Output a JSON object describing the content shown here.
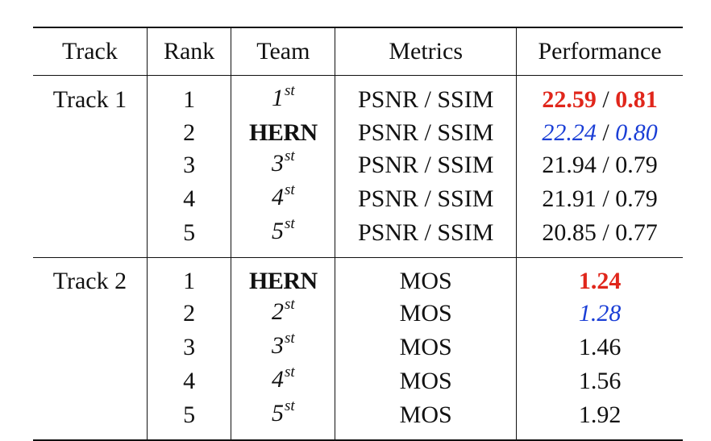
{
  "colors": {
    "best": "#e0261b",
    "second": "#1a3ed6",
    "text": "#111111"
  },
  "headers": {
    "track": "Track",
    "rank": "Rank",
    "team": "Team",
    "metrics": "Metrics",
    "performance": "Performance"
  },
  "track1": {
    "label": "Track 1",
    "rows": [
      {
        "rank": "1",
        "team_num": "1",
        "team_sup": "st",
        "metrics": "PSNR / SSIM",
        "perf_a": "22.59",
        "sep": " / ",
        "perf_b": "0.81",
        "style": "best"
      },
      {
        "rank": "2",
        "team": "HERN",
        "metrics": "PSNR / SSIM",
        "perf_a": "22.24",
        "sep": " / ",
        "perf_b": "0.80",
        "style": "second"
      },
      {
        "rank": "3",
        "team_num": "3",
        "team_sup": "st",
        "metrics": "PSNR / SSIM",
        "perf": "21.94 / 0.79"
      },
      {
        "rank": "4",
        "team_num": "4",
        "team_sup": "st",
        "metrics": "PSNR / SSIM",
        "perf": "21.91 / 0.79"
      },
      {
        "rank": "5",
        "team_num": "5",
        "team_sup": "st",
        "metrics": "PSNR / SSIM",
        "perf": "20.85 / 0.77"
      }
    ]
  },
  "track2": {
    "label": "Track 2",
    "rows": [
      {
        "rank": "1",
        "team": "HERN",
        "metrics": "MOS",
        "perf": "1.24",
        "style": "best"
      },
      {
        "rank": "2",
        "team_num": "2",
        "team_sup": "st",
        "metrics": "MOS",
        "perf": "1.28",
        "style": "second"
      },
      {
        "rank": "3",
        "team_num": "3",
        "team_sup": "st",
        "metrics": "MOS",
        "perf": "1.46"
      },
      {
        "rank": "4",
        "team_num": "4",
        "team_sup": "st",
        "metrics": "MOS",
        "perf": "1.56"
      },
      {
        "rank": "5",
        "team_num": "5",
        "team_sup": "st",
        "metrics": "MOS",
        "perf": "1.92"
      }
    ]
  }
}
